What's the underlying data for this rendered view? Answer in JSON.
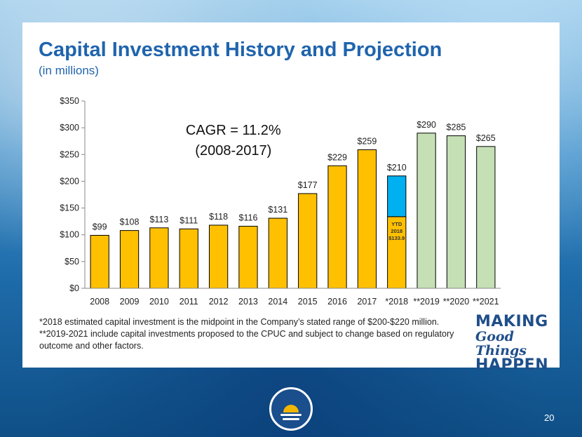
{
  "header": {
    "title": "Capital Investment History and Projection",
    "subtitle": "(in millions)"
  },
  "chart_data": {
    "type": "bar",
    "categories": [
      "2008",
      "2009",
      "2010",
      "2011",
      "2012",
      "2013",
      "2014",
      "2015",
      "2016",
      "2017",
      "*2018",
      "**2019",
      "**2020",
      "**2021"
    ],
    "values": [
      99,
      108,
      113,
      111,
      118,
      116,
      131,
      177,
      229,
      259,
      210,
      290,
      285,
      265
    ],
    "value_labels": [
      "$99",
      "$108",
      "$113",
      "$111",
      "$118",
      "$116",
      "$131",
      "$177",
      "$229",
      "$259",
      "$210",
      "$290",
      "$285",
      "$265"
    ],
    "ytd_2018": 133.9,
    "ytd_label_lines": [
      "YTD",
      "2018",
      "$133.9"
    ],
    "ylim": [
      0,
      350
    ],
    "yticks": [
      "$0",
      "$50",
      "$100",
      "$150",
      "$200",
      "$250",
      "$300",
      "$350"
    ],
    "ytick_values": [
      0,
      50,
      100,
      150,
      200,
      250,
      300,
      350
    ],
    "annotation_lines": [
      "CAGR = 11.2%",
      "(2008-2017)"
    ],
    "grid": false,
    "colors": {
      "historical": "#ffc000",
      "estimate_remaining": "#00b0f0",
      "projection": "#c5e0b4",
      "border": "#000000"
    }
  },
  "footnotes": {
    "line1": "*2018 estimated capital investment is the midpoint in the Company’s stated range of $200-$220 million.",
    "line2": "**2019-2021 include capital investments proposed to the CPUC and subject to change based on regulatory",
    "line3": "outcome and other factors."
  },
  "brand": {
    "line1": "MAKING",
    "line2": "Good Things",
    "line3": "HAPPEN"
  },
  "page_number": "20"
}
